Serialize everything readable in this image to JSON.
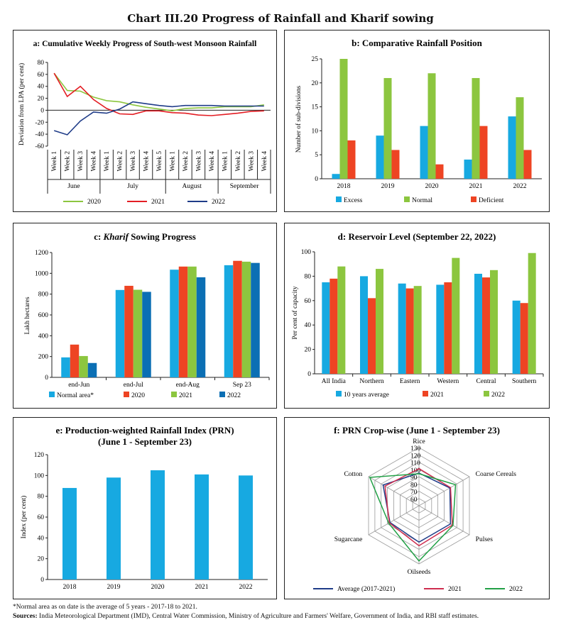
{
  "title": "Chart III.20 Progress of Rainfall and Kharif sowing",
  "colors": {
    "green": "#8cc63f",
    "red": "#e31e24",
    "navy": "#1f3c88",
    "sky": "#17a9e1",
    "blue2": "#0b6fb4",
    "orange": "#ee4423",
    "axis": "#222222"
  },
  "chart_data": [
    {
      "id": "a",
      "type": "line",
      "title": "a: Cumulative Weekly Progress of South-west Monsoon Rainfall",
      "ylabel": "Deviation from LPA (per cent)",
      "ylim": [
        -60,
        80
      ],
      "yticks": [
        80,
        60,
        40,
        20,
        0,
        -20,
        -40,
        -60
      ],
      "categories": [
        "Week 1",
        "Week 2",
        "Week 3",
        "Week 4",
        "Week 1",
        "Week 2",
        "Week 3",
        "Week 4",
        "Week 5",
        "Week 1",
        "Week 2",
        "Week 3",
        "Week 4",
        "Week 1",
        "Week 2",
        "Week 3",
        "Week 4"
      ],
      "groups": [
        {
          "label": "June",
          "count": 4
        },
        {
          "label": "July",
          "count": 5
        },
        {
          "label": "August",
          "count": 4
        },
        {
          "label": "September",
          "count": 4
        }
      ],
      "series": [
        {
          "name": "2020",
          "color": "#8cc63f",
          "values": [
            62,
            33,
            32,
            22,
            16,
            14,
            9,
            5,
            2,
            -1,
            3,
            4,
            4,
            6,
            6,
            6,
            9
          ]
        },
        {
          "name": "2021",
          "color": "#e31e24",
          "values": [
            62,
            23,
            40,
            18,
            3,
            -6,
            -7,
            -1,
            -1,
            -4,
            -5,
            -8,
            -9,
            -7,
            -5,
            -2,
            -1
          ]
        },
        {
          "name": "2022",
          "color": "#1f3c88",
          "values": [
            -34,
            -41,
            -18,
            -3,
            -5,
            2,
            14,
            11,
            8,
            6,
            8,
            8,
            8,
            7,
            7,
            7,
            7
          ]
        }
      ]
    },
    {
      "id": "b",
      "type": "bar",
      "title": "b: Comparative Rainfall Position",
      "ylabel": "Number of sub-divisions",
      "ylim": [
        0,
        25
      ],
      "yticks": [
        0,
        5,
        10,
        15,
        20,
        25
      ],
      "categories": [
        "2018",
        "2019",
        "2020",
        "2021",
        "2022"
      ],
      "series": [
        {
          "name": "Excess",
          "color": "#17a9e1",
          "values": [
            1,
            9,
            11,
            4,
            13
          ]
        },
        {
          "name": "Normal",
          "color": "#8cc63f",
          "values": [
            25,
            21,
            22,
            21,
            17
          ]
        },
        {
          "name": "Deficient",
          "color": "#ee4423",
          "values": [
            8,
            6,
            3,
            11,
            6
          ]
        }
      ]
    },
    {
      "id": "c",
      "type": "bar",
      "title_pre": "c: ",
      "title_italic": "Kharif",
      "title_post": " Sowing Progress",
      "ylabel": "Lakh hectares",
      "ylim": [
        0,
        1200
      ],
      "yticks": [
        0,
        200,
        400,
        600,
        800,
        1000,
        1200
      ],
      "categories": [
        "end-Jun",
        "end-Jul",
        "end-Aug",
        "Sep 23"
      ],
      "series": [
        {
          "name": "Normal area*",
          "color": "#17a9e1",
          "values": [
            192,
            840,
            1035,
            1078
          ]
        },
        {
          "name": "2020",
          "color": "#ee4423",
          "values": [
            315,
            880,
            1065,
            1120
          ]
        },
        {
          "name": "2021",
          "color": "#8cc63f",
          "values": [
            205,
            842,
            1065,
            1112
          ]
        },
        {
          "name": "2022",
          "color": "#0b6fb4",
          "values": [
            138,
            822,
            962,
            1100
          ]
        }
      ]
    },
    {
      "id": "d",
      "type": "bar",
      "title": "d: Reservoir Level (September 22, 2022)",
      "ylabel": "Per cent of capacity",
      "ylim": [
        0,
        100
      ],
      "yticks": [
        0,
        20,
        40,
        60,
        80,
        100
      ],
      "categories": [
        "All India",
        "Northern",
        "Eastern",
        "Western",
        "Central",
        "Southern"
      ],
      "series": [
        {
          "name": "10 years average",
          "color": "#17a9e1",
          "values": [
            75,
            80,
            74,
            73,
            82,
            60
          ]
        },
        {
          "name": "2021",
          "color": "#ee4423",
          "values": [
            78,
            62,
            70,
            75,
            79,
            58
          ]
        },
        {
          "name": "2022",
          "color": "#8cc63f",
          "values": [
            88,
            86,
            72,
            95,
            85,
            99
          ]
        }
      ]
    },
    {
      "id": "e",
      "type": "bar",
      "title": "e: Production-weighted Rainfall Index  (PRN)",
      "subtitle": "(June 1 - September 23)",
      "ylabel": "Index (per cent)",
      "ylim": [
        0,
        120
      ],
      "yticks": [
        0,
        20,
        40,
        60,
        80,
        100,
        120
      ],
      "categories": [
        "2018",
        "2019",
        "2020",
        "2021",
        "2022"
      ],
      "series": [
        {
          "name": "PRN",
          "color": "#17a9e1",
          "values": [
            88,
            98,
            105,
            101,
            100
          ]
        }
      ]
    },
    {
      "id": "f",
      "type": "radar",
      "title": "f: PRN Crop-wise (June 1 - September 23)",
      "rlim": [
        50,
        130
      ],
      "rticks": [
        60,
        70,
        80,
        90,
        100,
        110,
        120,
        130
      ],
      "axes": [
        "Rice",
        "Coarse Cereals",
        "Pulses",
        "Oilseeds",
        "Sugarcane",
        "Cotton"
      ],
      "series": [
        {
          "name": "Average (2017-2021)",
          "color": "#1f3c88",
          "values": [
            95,
            99,
            100,
            100,
            96,
            107
          ]
        },
        {
          "name": "2021",
          "color": "#ce2d4f",
          "values": [
            101,
            100,
            103,
            105,
            97,
            104
          ]
        },
        {
          "name": "2022",
          "color": "#22a046",
          "values": [
            94,
            108,
            104,
            126,
            98,
            128
          ]
        }
      ]
    }
  ],
  "footnotes": {
    "note": "*Normal area as on date is the average of 5 years - 2017-18 to 2021.",
    "sources_label": "Sources:",
    "sources_text": " India Meteorological Department (IMD), Central Water Commission, Ministry of Agriculture and Farmers' Welfare, Government of India, and RBI staff estimates."
  }
}
